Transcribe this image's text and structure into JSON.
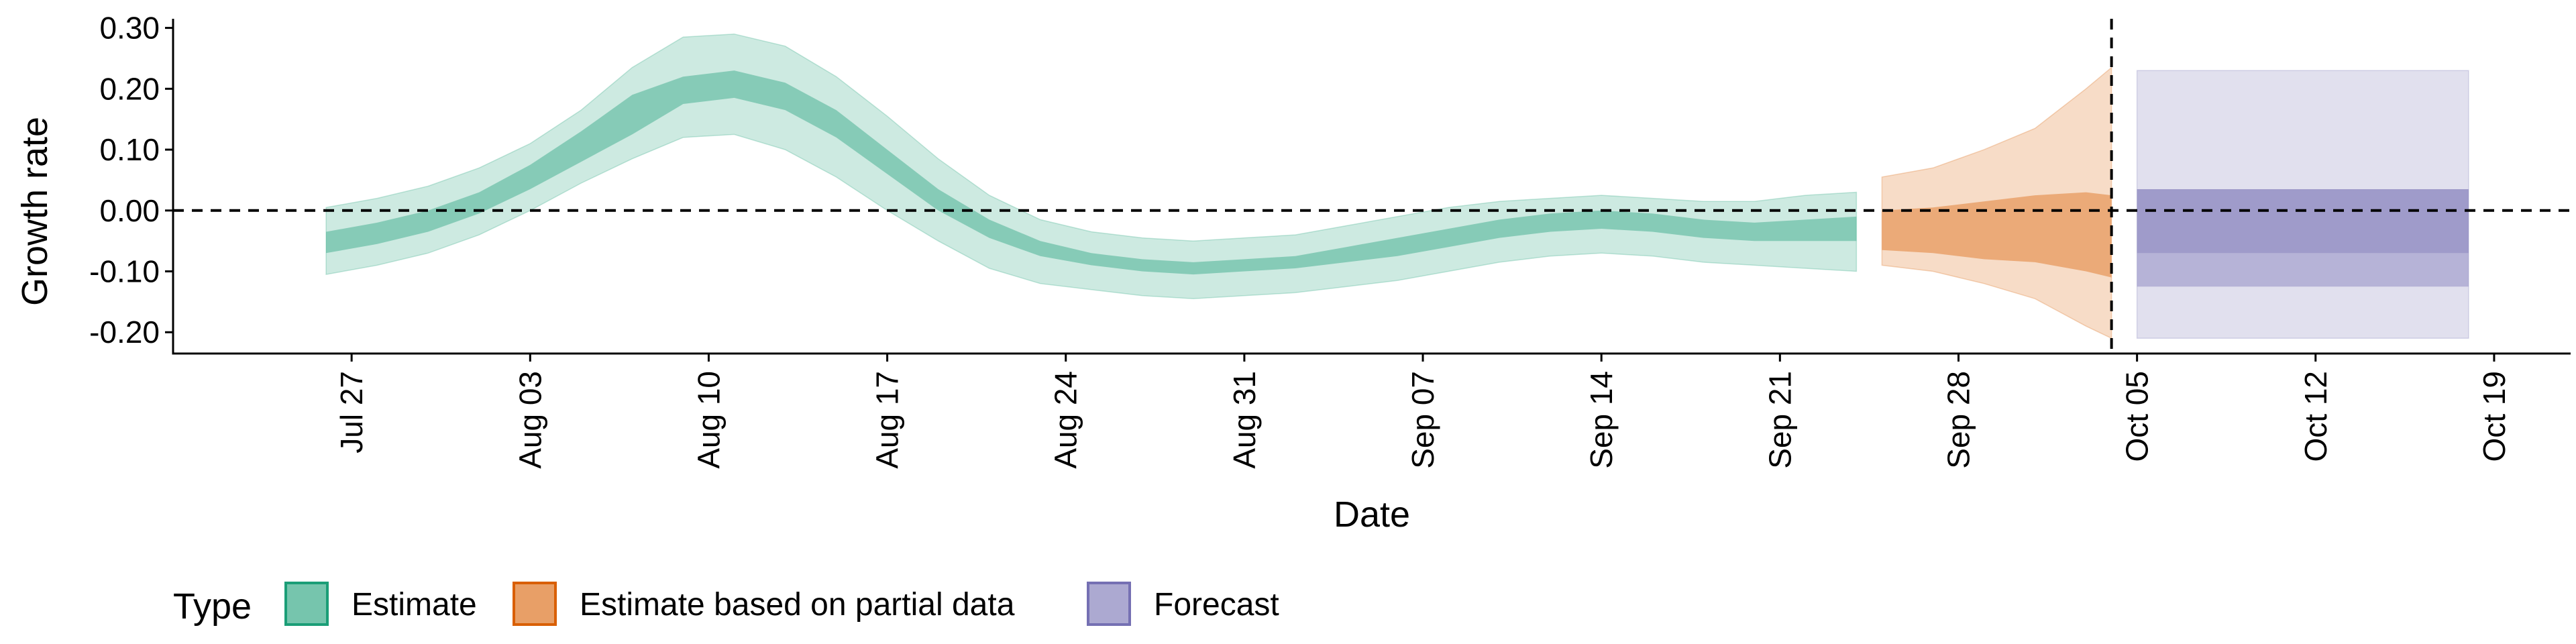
{
  "chart_data": {
    "type": "area",
    "xlabel": "Date",
    "ylabel": "Growth rate",
    "ylim": [
      -0.235,
      0.315
    ],
    "xlim": [
      "2020-07-20",
      "2020-10-22"
    ],
    "y_ticks": [
      {
        "value": 0.3,
        "label": "0.30"
      },
      {
        "value": 0.2,
        "label": "0.20"
      },
      {
        "value": 0.1,
        "label": "0.10"
      },
      {
        "value": 0.0,
        "label": "0.00"
      },
      {
        "value": -0.1,
        "label": "-0.10"
      },
      {
        "value": -0.2,
        "label": "-0.20"
      }
    ],
    "x_ticks": [
      {
        "date": "2020-07-27",
        "label": "Jul 27"
      },
      {
        "date": "2020-08-03",
        "label": "Aug 03"
      },
      {
        "date": "2020-08-10",
        "label": "Aug 10"
      },
      {
        "date": "2020-08-17",
        "label": "Aug 17"
      },
      {
        "date": "2020-08-24",
        "label": "Aug 24"
      },
      {
        "date": "2020-08-31",
        "label": "Aug 31"
      },
      {
        "date": "2020-09-07",
        "label": "Sep 07"
      },
      {
        "date": "2020-09-14",
        "label": "Sep 14"
      },
      {
        "date": "2020-09-21",
        "label": "Sep 21"
      },
      {
        "date": "2020-09-28",
        "label": "Sep 28"
      },
      {
        "date": "2020-10-05",
        "label": "Oct 05"
      },
      {
        "date": "2020-10-12",
        "label": "Oct 12"
      },
      {
        "date": "2020-10-19",
        "label": "Oct 19"
      }
    ],
    "reference_lines": {
      "horizontal_y": 0.0,
      "vertical_date": "2020-10-04",
      "style": "dashed"
    },
    "grid": false,
    "legend_position": "bottom-left",
    "legend_title": "Type",
    "series": [
      {
        "name": "Estimate",
        "color": "#1b9e77",
        "points": [
          {
            "date": "2020-07-26",
            "outer": [
              -0.105,
              0.005
            ],
            "inner": [
              -0.07,
              -0.035
            ]
          },
          {
            "date": "2020-07-28",
            "outer": [
              -0.09,
              0.02
            ],
            "inner": [
              -0.055,
              -0.02
            ]
          },
          {
            "date": "2020-07-30",
            "outer": [
              -0.07,
              0.04
            ],
            "inner": [
              -0.035,
              0.0
            ]
          },
          {
            "date": "2020-08-01",
            "outer": [
              -0.04,
              0.07
            ],
            "inner": [
              -0.005,
              0.03
            ]
          },
          {
            "date": "2020-08-03",
            "outer": [
              0.0,
              0.11
            ],
            "inner": [
              0.035,
              0.075
            ]
          },
          {
            "date": "2020-08-05",
            "outer": [
              0.045,
              0.165
            ],
            "inner": [
              0.08,
              0.13
            ]
          },
          {
            "date": "2020-08-07",
            "outer": [
              0.085,
              0.235
            ],
            "inner": [
              0.125,
              0.19
            ]
          },
          {
            "date": "2020-08-09",
            "outer": [
              0.12,
              0.285
            ],
            "inner": [
              0.175,
              0.22
            ]
          },
          {
            "date": "2020-08-11",
            "outer": [
              0.125,
              0.29
            ],
            "inner": [
              0.185,
              0.23
            ]
          },
          {
            "date": "2020-08-13",
            "outer": [
              0.1,
              0.27
            ],
            "inner": [
              0.165,
              0.21
            ]
          },
          {
            "date": "2020-08-15",
            "outer": [
              0.055,
              0.22
            ],
            "inner": [
              0.12,
              0.165
            ]
          },
          {
            "date": "2020-08-17",
            "outer": [
              0.0,
              0.155
            ],
            "inner": [
              0.06,
              0.1
            ]
          },
          {
            "date": "2020-08-19",
            "outer": [
              -0.05,
              0.085
            ],
            "inner": [
              0.0,
              0.035
            ]
          },
          {
            "date": "2020-08-21",
            "outer": [
              -0.095,
              0.025
            ],
            "inner": [
              -0.045,
              -0.015
            ]
          },
          {
            "date": "2020-08-23",
            "outer": [
              -0.12,
              -0.015
            ],
            "inner": [
              -0.075,
              -0.05
            ]
          },
          {
            "date": "2020-08-25",
            "outer": [
              -0.13,
              -0.035
            ],
            "inner": [
              -0.09,
              -0.07
            ]
          },
          {
            "date": "2020-08-27",
            "outer": [
              -0.14,
              -0.045
            ],
            "inner": [
              -0.1,
              -0.08
            ]
          },
          {
            "date": "2020-08-29",
            "outer": [
              -0.145,
              -0.05
            ],
            "inner": [
              -0.105,
              -0.085
            ]
          },
          {
            "date": "2020-08-31",
            "outer": [
              -0.14,
              -0.045
            ],
            "inner": [
              -0.1,
              -0.08
            ]
          },
          {
            "date": "2020-09-02",
            "outer": [
              -0.135,
              -0.04
            ],
            "inner": [
              -0.095,
              -0.075
            ]
          },
          {
            "date": "2020-09-04",
            "outer": [
              -0.125,
              -0.025
            ],
            "inner": [
              -0.085,
              -0.06
            ]
          },
          {
            "date": "2020-09-06",
            "outer": [
              -0.115,
              -0.01
            ],
            "inner": [
              -0.075,
              -0.045
            ]
          },
          {
            "date": "2020-09-08",
            "outer": [
              -0.1,
              0.005
            ],
            "inner": [
              -0.06,
              -0.03
            ]
          },
          {
            "date": "2020-09-10",
            "outer": [
              -0.085,
              0.015
            ],
            "inner": [
              -0.045,
              -0.015
            ]
          },
          {
            "date": "2020-09-12",
            "outer": [
              -0.075,
              0.02
            ],
            "inner": [
              -0.035,
              -0.005
            ]
          },
          {
            "date": "2020-09-14",
            "outer": [
              -0.07,
              0.025
            ],
            "inner": [
              -0.03,
              0.0
            ]
          },
          {
            "date": "2020-09-16",
            "outer": [
              -0.075,
              0.02
            ],
            "inner": [
              -0.035,
              -0.005
            ]
          },
          {
            "date": "2020-09-18",
            "outer": [
              -0.085,
              0.015
            ],
            "inner": [
              -0.045,
              -0.015
            ]
          },
          {
            "date": "2020-09-20",
            "outer": [
              -0.09,
              0.015
            ],
            "inner": [
              -0.05,
              -0.02
            ]
          },
          {
            "date": "2020-09-22",
            "outer": [
              -0.095,
              0.025
            ],
            "inner": [
              -0.05,
              -0.015
            ]
          },
          {
            "date": "2020-09-24",
            "outer": [
              -0.1,
              0.03
            ],
            "inner": [
              -0.05,
              -0.01
            ]
          }
        ]
      },
      {
        "name": "Estimate based on partial data",
        "color": "#d95f02",
        "points": [
          {
            "date": "2020-09-25",
            "outer": [
              -0.09,
              0.055
            ],
            "inner": [
              -0.065,
              0.0
            ]
          },
          {
            "date": "2020-09-27",
            "outer": [
              -0.1,
              0.07
            ],
            "inner": [
              -0.07,
              0.005
            ]
          },
          {
            "date": "2020-09-29",
            "outer": [
              -0.12,
              0.1
            ],
            "inner": [
              -0.08,
              0.015
            ]
          },
          {
            "date": "2020-10-01",
            "outer": [
              -0.145,
              0.135
            ],
            "inner": [
              -0.085,
              0.025
            ]
          },
          {
            "date": "2020-10-03",
            "outer": [
              -0.19,
              0.2
            ],
            "inner": [
              -0.1,
              0.03
            ]
          },
          {
            "date": "2020-10-04",
            "outer": [
              -0.21,
              0.235
            ],
            "inner": [
              -0.11,
              0.025
            ]
          }
        ]
      },
      {
        "name": "Forecast",
        "color": "#7570b3",
        "points": [
          {
            "date": "2020-10-05",
            "outer": [
              -0.21,
              0.23
            ],
            "inner": [
              -0.125,
              0.035
            ],
            "core": [
              -0.07,
              0.035
            ]
          },
          {
            "date": "2020-10-18",
            "outer": [
              -0.21,
              0.23
            ],
            "inner": [
              -0.125,
              0.035
            ],
            "core": [
              -0.07,
              0.035
            ]
          }
        ]
      }
    ]
  }
}
